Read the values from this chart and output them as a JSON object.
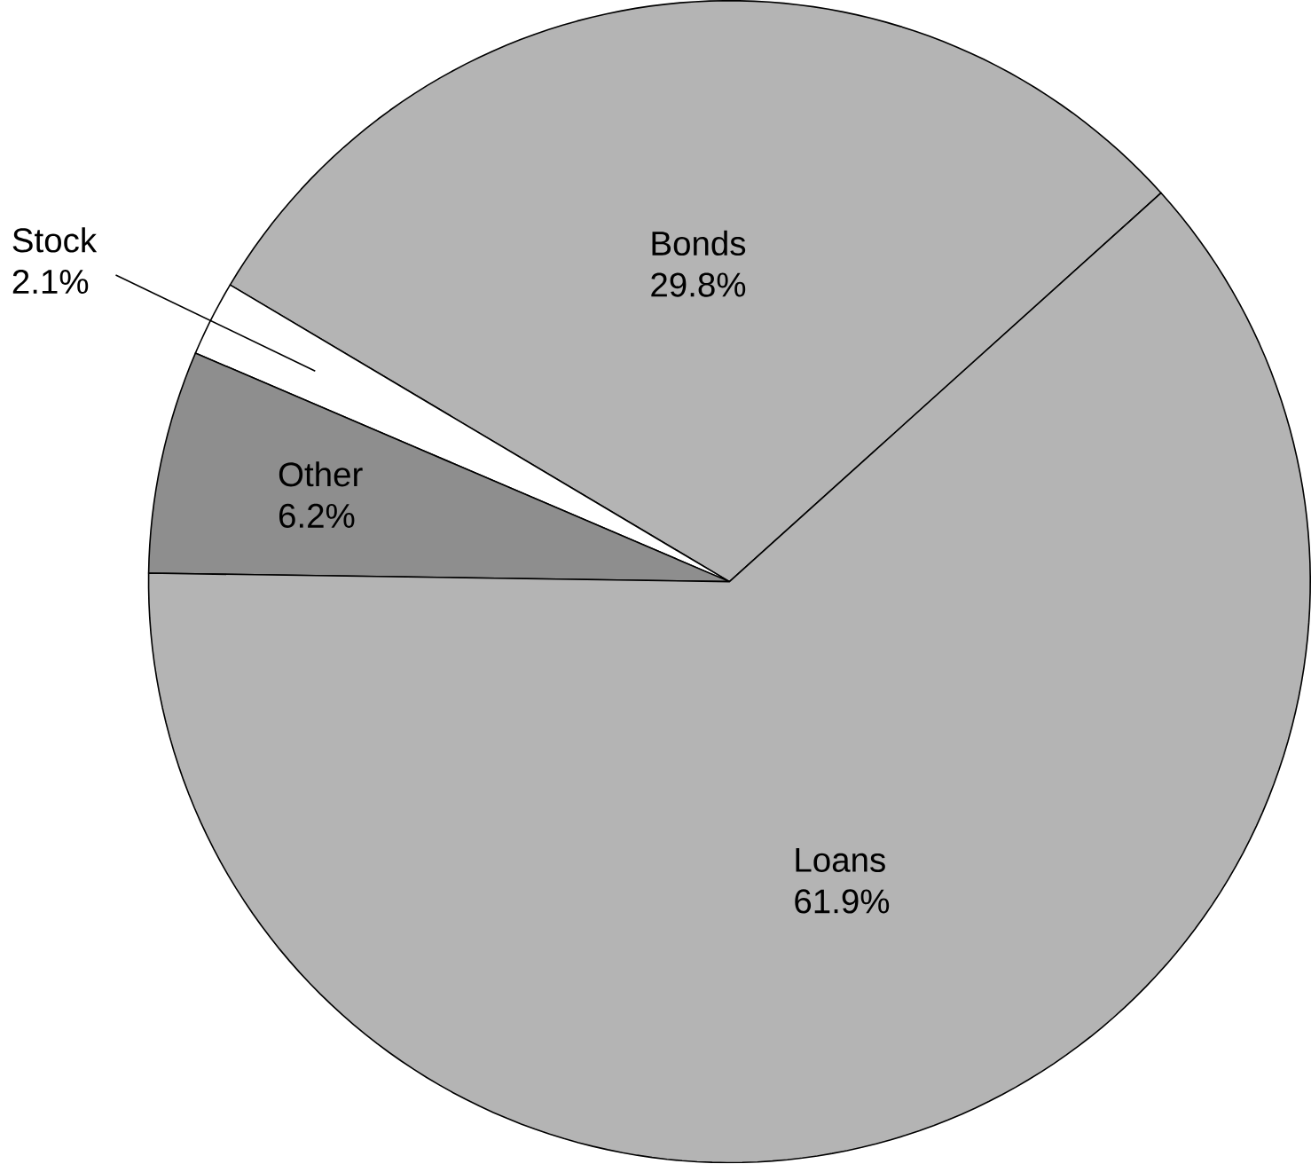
{
  "chart_data": {
    "type": "pie",
    "categories": [
      "Bonds",
      "Stock",
      "Other",
      "Loans"
    ],
    "values": [
      29.8,
      2.1,
      6.2,
      61.9
    ],
    "value_labels": [
      "29.8%",
      "2.1%",
      "6.2%",
      "61.9%"
    ],
    "colors": [
      "#b4b4b4",
      "#ffffff",
      "#8e8e8e",
      "#b4b4b4"
    ],
    "data_labels": true
  }
}
